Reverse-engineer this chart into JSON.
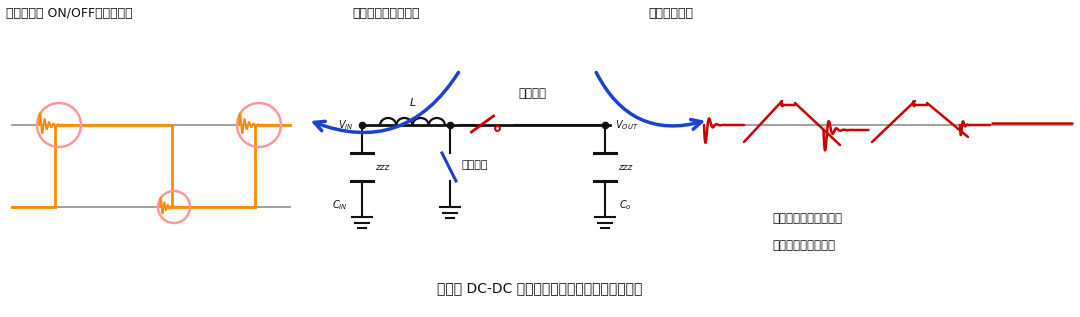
{
  "title_bottom": "升压型 DC-DC 转换器的开关节点和输出电压波形",
  "label_left": "低边开关的 ON/OFF引发的振动",
  "label_mid": "开关节点的电压波形",
  "label_right_top": "输出电压波形",
  "label_right_bottom1": "输出电压的纹波电压和",
  "label_right_bottom2": "振铃导致的高频噪声",
  "label_high_switch": "高边开关",
  "label_low_switch": "低边开关",
  "orange_color": "#FF8C00",
  "red_color": "#CC0000",
  "blue_color": "#1A44CC",
  "gray_color": "#999999",
  "black_color": "#111111",
  "circle_color": "#FF9999",
  "bg_color": "#FFFFFF",
  "lw_main": 2.0,
  "lw_thin": 1.5
}
